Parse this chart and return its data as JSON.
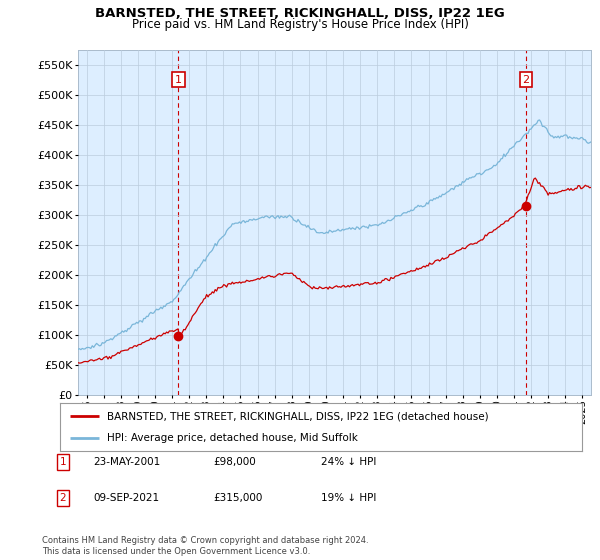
{
  "title": "BARNSTED, THE STREET, RICKINGHALL, DISS, IP22 1EG",
  "subtitle": "Price paid vs. HM Land Registry's House Price Index (HPI)",
  "legend_line1": "BARNSTED, THE STREET, RICKINGHALL, DISS, IP22 1EG (detached house)",
  "legend_line2": "HPI: Average price, detached house, Mid Suffolk",
  "annotation1_label": "1",
  "annotation1_date": "23-MAY-2001",
  "annotation1_price": "£98,000",
  "annotation1_hpi": "24% ↓ HPI",
  "annotation2_label": "2",
  "annotation2_date": "09-SEP-2021",
  "annotation2_price": "£315,000",
  "annotation2_hpi": "19% ↓ HPI",
  "footnote": "Contains HM Land Registry data © Crown copyright and database right 2024.\nThis data is licensed under the Open Government Licence v3.0.",
  "hpi_color": "#7ab6d9",
  "price_color": "#cc0000",
  "ylim": [
    0,
    575000
  ],
  "yticks": [
    0,
    50000,
    100000,
    150000,
    200000,
    250000,
    300000,
    350000,
    400000,
    450000,
    500000,
    550000
  ],
  "xlim_start": 1995.5,
  "xlim_end": 2025.5,
  "vline1_x": 2001.37,
  "vline2_x": 2021.69,
  "sale1_x": 2001.37,
  "sale1_y": 98000,
  "sale2_x": 2021.69,
  "sale2_y": 315000,
  "chart_bg_color": "#ddeeff",
  "background_color": "#ffffff",
  "grid_color": "#bbccdd"
}
